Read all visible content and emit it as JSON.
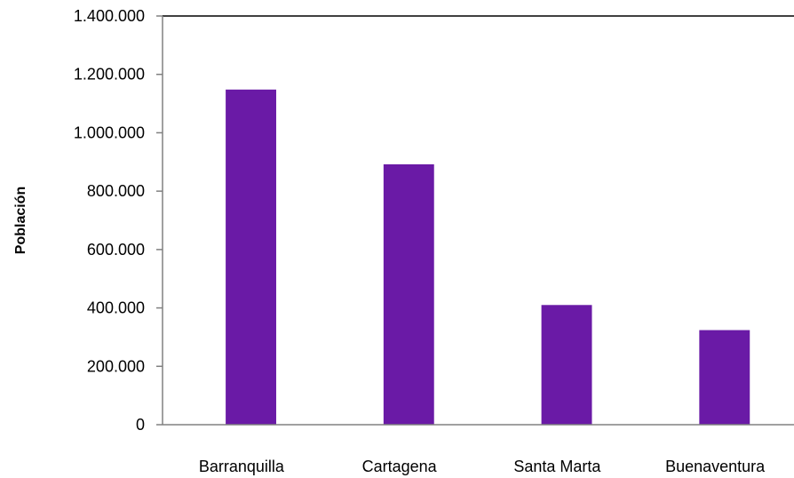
{
  "chart_data": {
    "type": "bar",
    "title": "",
    "xlabel": "",
    "ylabel": "Población",
    "categories": [
      "Barranquilla",
      "Cartagena",
      "Santa Marta",
      "Buenaventura"
    ],
    "values": [
      1148000,
      892000,
      410000,
      324000
    ],
    "ylim": [
      0,
      1400000
    ],
    "yticks": [
      0,
      200000,
      400000,
      600000,
      800000,
      1000000,
      1200000,
      1400000
    ],
    "ytick_labels": [
      "0",
      "200.000",
      "400.000",
      "600.000",
      "800.000",
      "1.000.000",
      "1.200.000",
      "1.400.000"
    ],
    "grid": false,
    "legend": "none",
    "bar_color": "#6a1aa6"
  }
}
